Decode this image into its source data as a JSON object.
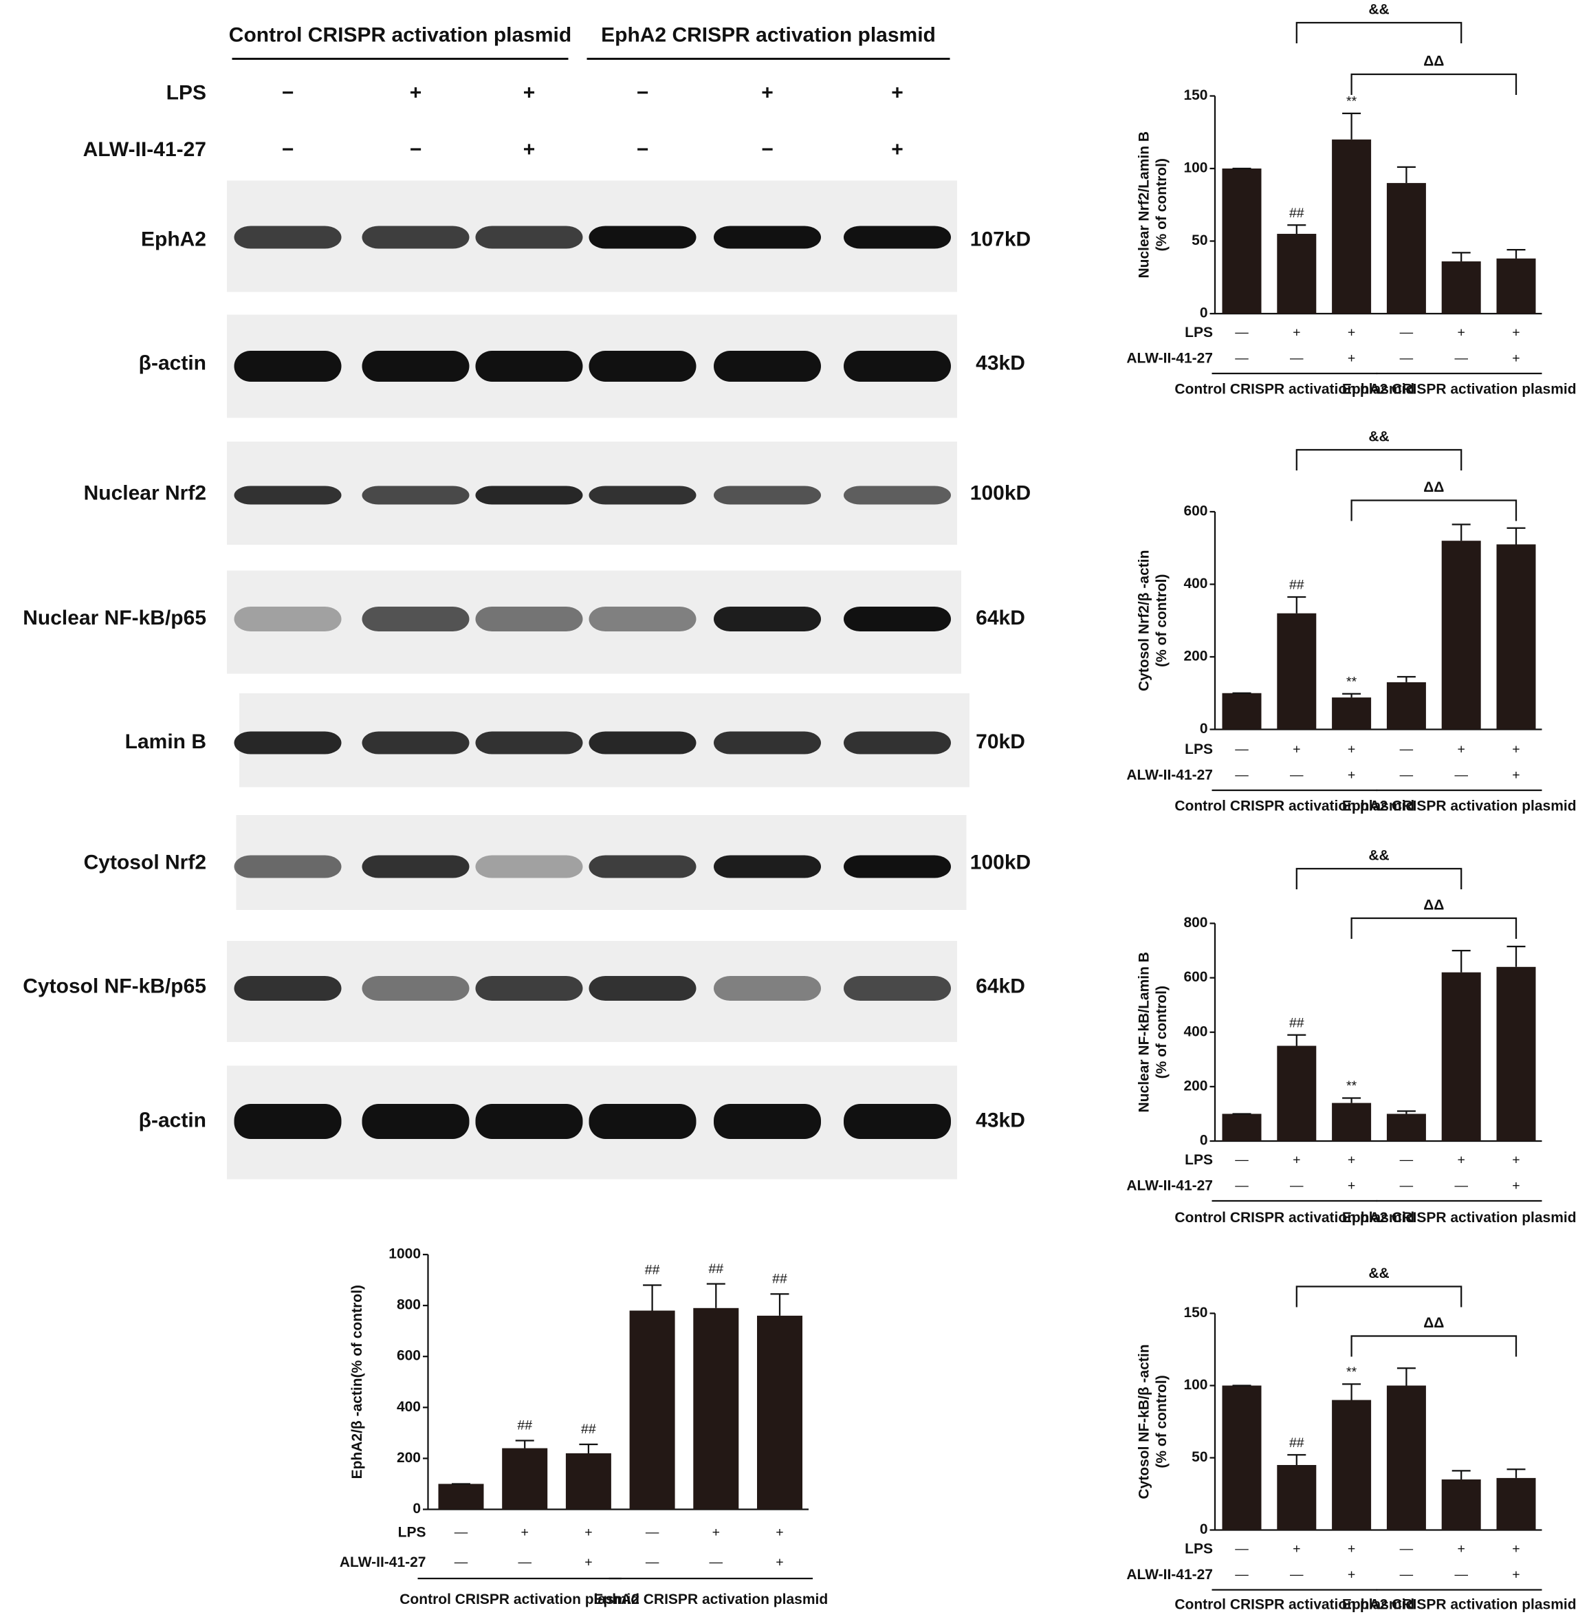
{
  "blot": {
    "groups": [
      "Control CRISPR activation plasmid",
      "EphA2 CRISPR activation plasmid"
    ],
    "treatments": [
      {
        "name": "LPS",
        "signs": [
          "−",
          "+",
          "+",
          "−",
          "+",
          "+"
        ]
      },
      {
        "name": "ALW-II-41-27",
        "signs": [
          "−",
          "−",
          "+",
          "−",
          "−",
          "+"
        ]
      }
    ],
    "bands": [
      {
        "label": "EphA2",
        "size": "107kD"
      },
      {
        "label": "β-actin",
        "size": "43kD"
      },
      {
        "label": "Nuclear Nrf2",
        "size": "100kD"
      },
      {
        "label": "Nuclear NF-kB/p65",
        "size": "64kD"
      },
      {
        "label": "Lamin B",
        "size": "70kD"
      },
      {
        "label": "Cytosol Nrf2",
        "size": "100kD"
      },
      {
        "label": "Cytosol NF-kB/p65",
        "size": "64kD"
      },
      {
        "label": "β-actin",
        "size": "43kD"
      }
    ]
  },
  "chart_data": [
    {
      "type": "bar",
      "ylabel": [
        "EphA2/β -actin(% of control)"
      ],
      "color": "#231815",
      "values": [
        100,
        240,
        220,
        780,
        790,
        760
      ],
      "errors": [
        0,
        30,
        35,
        100,
        95,
        85
      ],
      "annotations": [
        null,
        "##",
        "##",
        "##",
        "##",
        "##"
      ],
      "ylim": [
        0,
        1000
      ],
      "yticks": [
        0,
        200,
        400,
        600,
        800,
        1000
      ],
      "treatments": [
        {
          "name": "LPS",
          "signs": [
            "—",
            "+",
            "+",
            "—",
            "+",
            "+"
          ]
        },
        {
          "name": "ALW-II-41-27",
          "signs": [
            "—",
            "—",
            "+",
            "—",
            "—",
            "+"
          ]
        }
      ],
      "groups": [
        "Control CRISPR activation plasmid",
        "EphA2 CRISPR activation plasmid"
      ],
      "brackets": []
    },
    {
      "type": "bar",
      "ylabel": [
        "Nuclear Nrf2/Lamin B",
        "(% of control)"
      ],
      "color": "#231815",
      "values": [
        100,
        55,
        120,
        90,
        36,
        38
      ],
      "errors": [
        0,
        6,
        18,
        11,
        6,
        6
      ],
      "annotations": [
        null,
        "##",
        "**",
        null,
        null,
        null
      ],
      "ylim": [
        0,
        150
      ],
      "yticks": [
        0,
        50,
        100,
        150
      ],
      "treatments": [
        {
          "name": "LPS",
          "signs": [
            "—",
            "+",
            "+",
            "—",
            "+",
            "+"
          ]
        },
        {
          "name": "ALW-II-41-27",
          "signs": [
            "—",
            "—",
            "+",
            "—",
            "—",
            "+"
          ]
        }
      ],
      "groups": [
        "Control CRISPR activation plasmid",
        "EphA2 CRISPR activation plasmid"
      ],
      "brackets": [
        {
          "label": "&&",
          "between": [
            1,
            4
          ]
        },
        {
          "label": "ΔΔ",
          "between": [
            2,
            5
          ]
        }
      ]
    },
    {
      "type": "bar",
      "ylabel": [
        "Cytosol Nrf2/β -actin",
        "(% of control)"
      ],
      "color": "#231815",
      "values": [
        100,
        320,
        88,
        130,
        520,
        510
      ],
      "errors": [
        0,
        45,
        10,
        15,
        45,
        45
      ],
      "annotations": [
        null,
        "##",
        "**",
        null,
        null,
        null
      ],
      "ylim": [
        0,
        600
      ],
      "yticks": [
        0,
        200,
        400,
        600
      ],
      "treatments": [
        {
          "name": "LPS",
          "signs": [
            "—",
            "+",
            "+",
            "—",
            "+",
            "+"
          ]
        },
        {
          "name": "ALW-II-41-27",
          "signs": [
            "—",
            "—",
            "+",
            "—",
            "—",
            "+"
          ]
        }
      ],
      "groups": [
        "Control CRISPR activation plasmid",
        "EphA2 CRISPR activation plasmid"
      ],
      "brackets": [
        {
          "label": "&&",
          "between": [
            1,
            4
          ]
        },
        {
          "label": "ΔΔ",
          "between": [
            2,
            5
          ]
        }
      ]
    },
    {
      "type": "bar",
      "ylabel": [
        "Nuclear NF-kB/Lamin B",
        "(% of control)"
      ],
      "color": "#231815",
      "values": [
        100,
        350,
        140,
        100,
        620,
        640
      ],
      "errors": [
        0,
        40,
        18,
        10,
        80,
        75
      ],
      "annotations": [
        null,
        "##",
        "**",
        null,
        null,
        null
      ],
      "ylim": [
        0,
        800
      ],
      "yticks": [
        0,
        200,
        400,
        600,
        800
      ],
      "treatments": [
        {
          "name": "LPS",
          "signs": [
            "—",
            "+",
            "+",
            "—",
            "+",
            "+"
          ]
        },
        {
          "name": "ALW-II-41-27",
          "signs": [
            "—",
            "—",
            "+",
            "—",
            "—",
            "+"
          ]
        }
      ],
      "groups": [
        "Control CRISPR activation plasmid",
        "EphA2 CRISPR activation plasmid"
      ],
      "brackets": [
        {
          "label": "&&",
          "between": [
            1,
            4
          ]
        },
        {
          "label": "ΔΔ",
          "between": [
            2,
            5
          ]
        }
      ]
    },
    {
      "type": "bar",
      "ylabel": [
        "Cytosol NF-kB/β -actin",
        "(% of control)"
      ],
      "color": "#231815",
      "values": [
        100,
        45,
        90,
        100,
        35,
        36
      ],
      "errors": [
        0,
        7,
        11,
        12,
        6,
        6
      ],
      "annotations": [
        null,
        "##",
        "**",
        null,
        null,
        null
      ],
      "ylim": [
        0,
        150
      ],
      "yticks": [
        0,
        50,
        100,
        150
      ],
      "treatments": [
        {
          "name": "LPS",
          "signs": [
            "—",
            "+",
            "+",
            "—",
            "+",
            "+"
          ]
        },
        {
          "name": "ALW-II-41-27",
          "signs": [
            "—",
            "—",
            "+",
            "—",
            "—",
            "+"
          ]
        }
      ],
      "groups": [
        "Control CRISPR activation plasmid",
        "EphA2 CRISPR activation plasmid"
      ],
      "brackets": [
        {
          "label": "&&",
          "between": [
            1,
            4
          ]
        },
        {
          "label": "ΔΔ",
          "between": [
            2,
            5
          ]
        }
      ]
    }
  ]
}
